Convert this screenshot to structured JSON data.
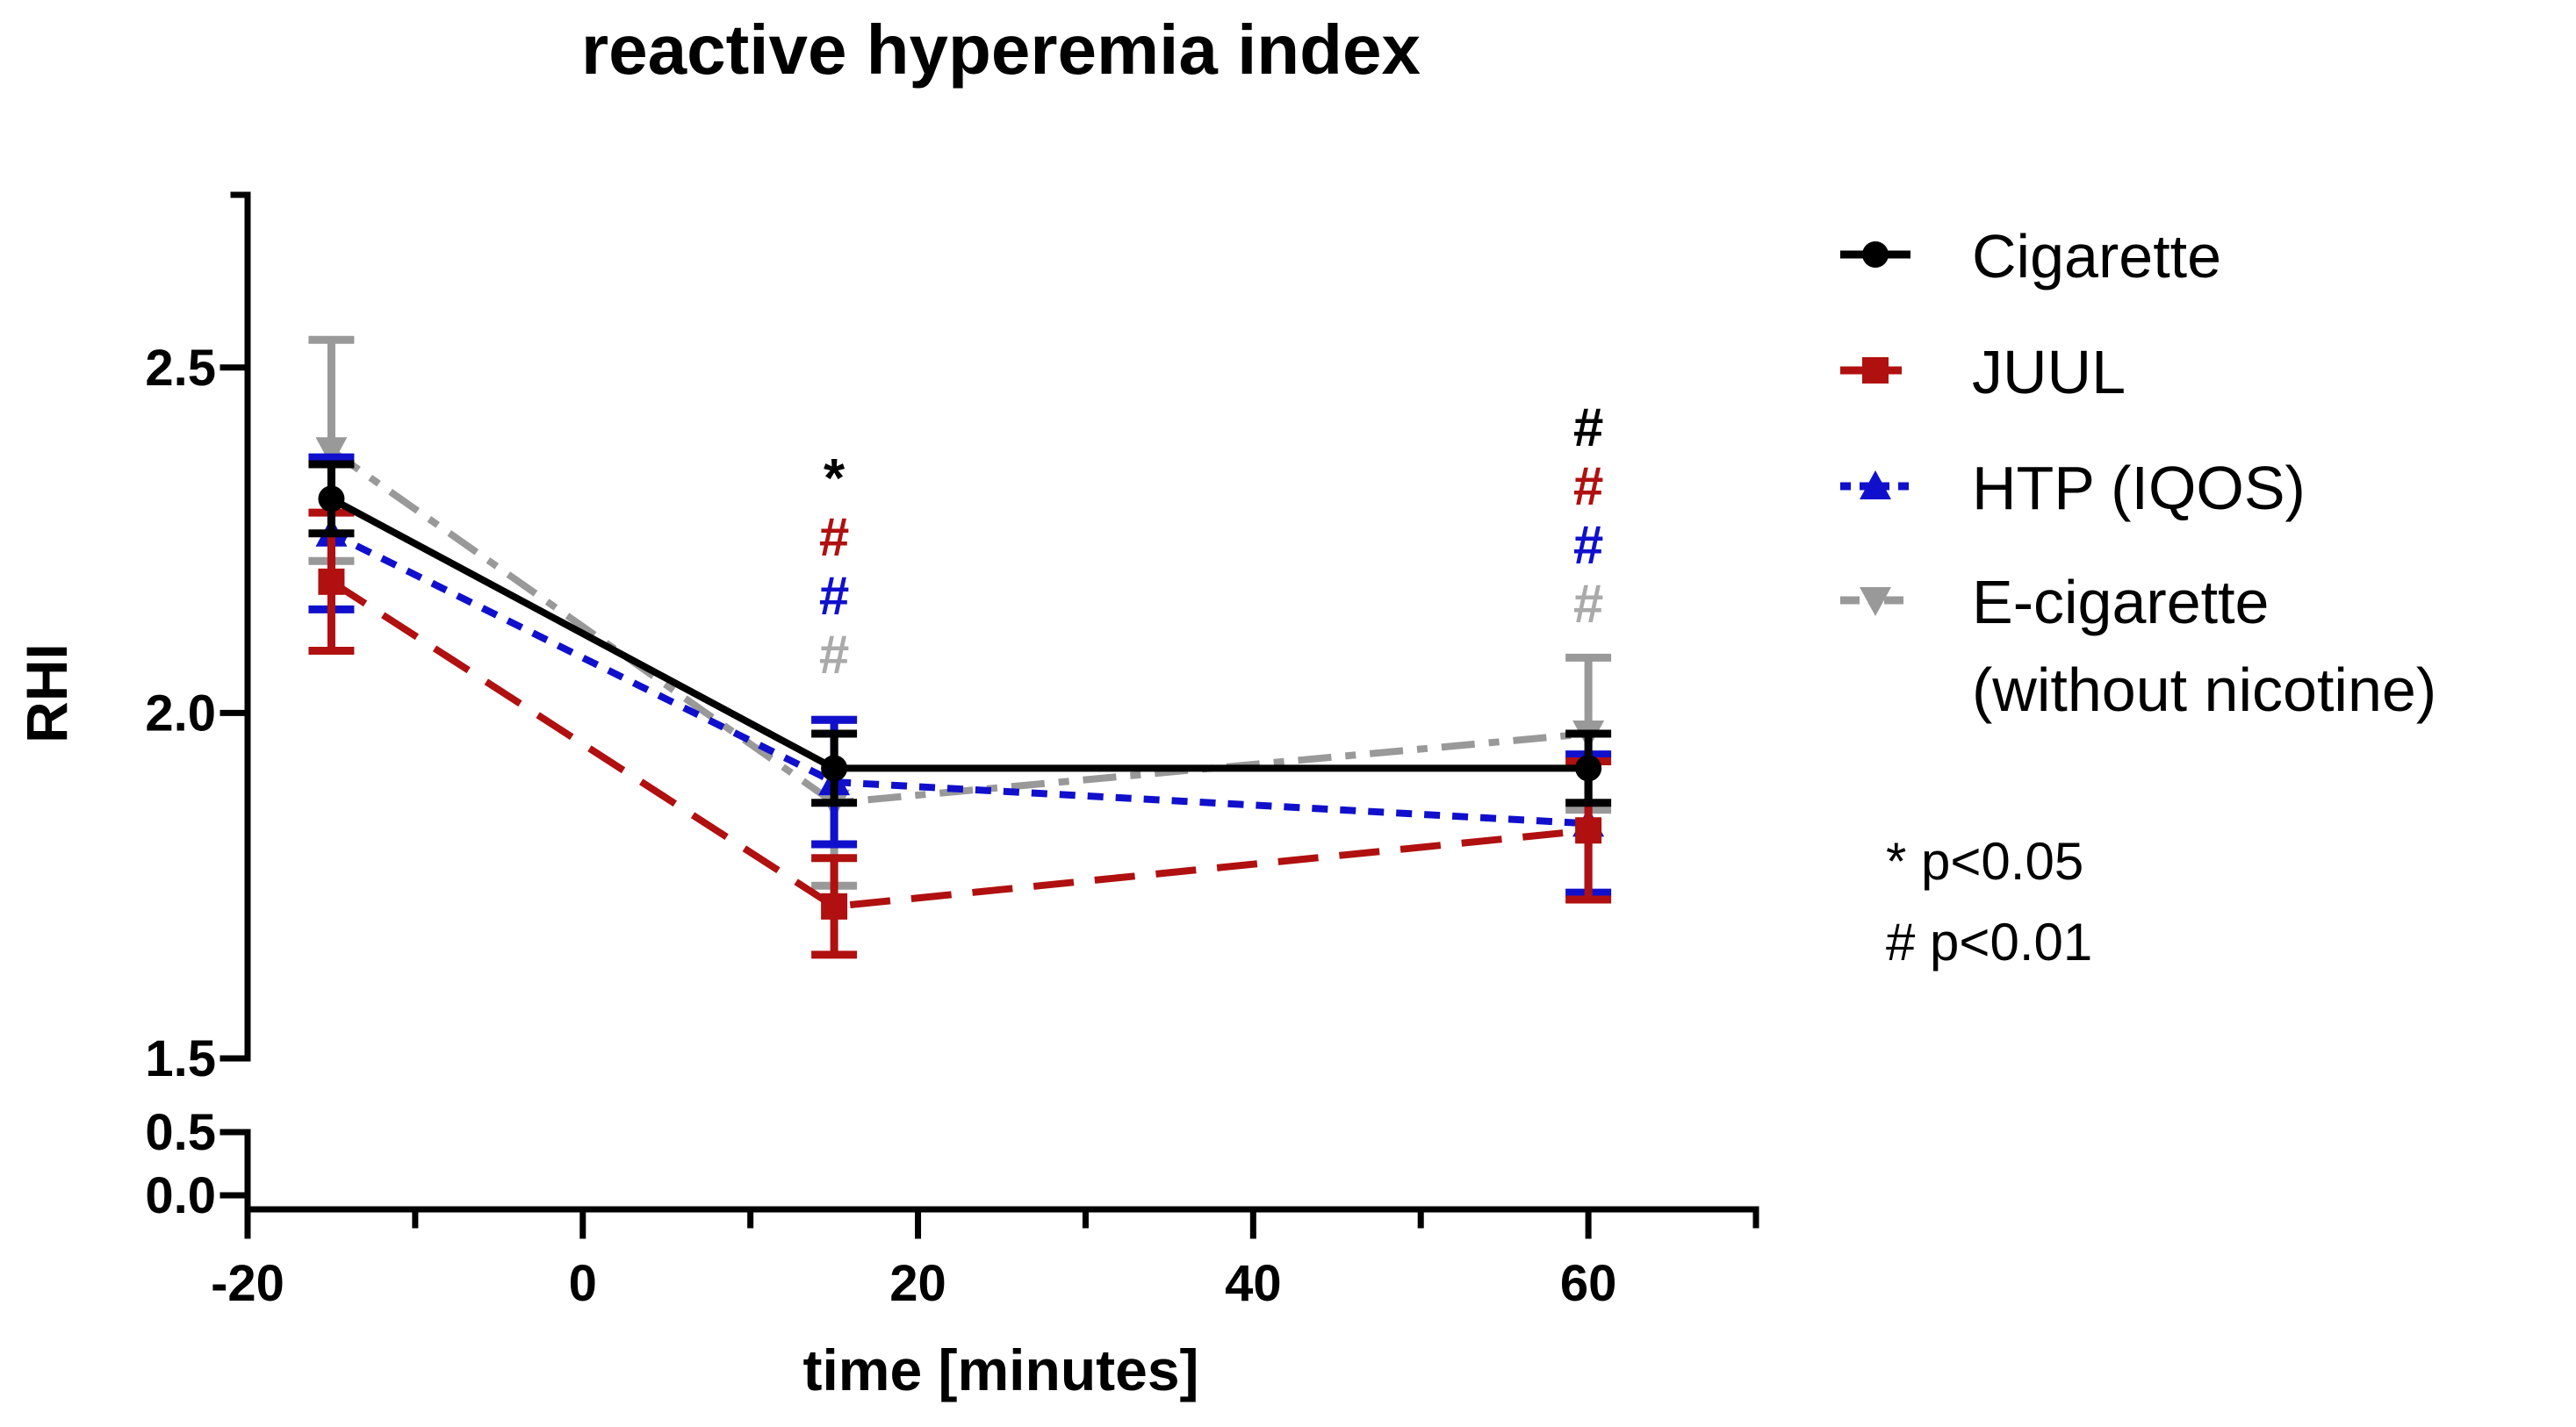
{
  "chart_data": {
    "type": "line",
    "title": "reactive hyperemia index",
    "xlabel": "time [minutes]",
    "ylabel": "RHI",
    "xlim": [
      -20,
      70
    ],
    "xticks": [
      -20,
      0,
      20,
      40,
      60
    ],
    "x_minor_ticks": [
      -10,
      10,
      30,
      50,
      70
    ],
    "ylim_upper": [
      1.5,
      2.75
    ],
    "ylim_lower": [
      0.0,
      0.5
    ],
    "yticks_upper": [
      1.5,
      2.0,
      2.5
    ],
    "yticks_lower": [
      0.0,
      0.5
    ],
    "y_tick_labels": [
      "0.0",
      "0.5",
      "1.5",
      "2.0",
      "2.5"
    ],
    "x": [
      -15,
      15,
      60
    ],
    "series": [
      {
        "name": "Cigarette",
        "color": "#000000",
        "dash": "solid",
        "marker": "circle",
        "values": [
          2.31,
          1.92,
          1.92
        ],
        "error": [
          0.05,
          0.05,
          0.05
        ]
      },
      {
        "name": "JUUL",
        "color": "#b01010",
        "dash": "long-dash",
        "marker": "square",
        "values": [
          2.19,
          1.72,
          1.83
        ],
        "error": [
          0.1,
          0.07,
          0.1
        ]
      },
      {
        "name": "HTP (IQOS)",
        "color": "#1010cc",
        "dash": "short-dash",
        "marker": "triangle-up",
        "values": [
          2.26,
          1.9,
          1.84
        ],
        "error": [
          0.11,
          0.09,
          0.1
        ]
      },
      {
        "name": "E-cigarette",
        "color": "#999999",
        "dash": "dash-dot",
        "marker": "triangle-down",
        "values": [
          2.38,
          1.87,
          1.97
        ],
        "error": [
          0.16,
          0.12,
          0.11
        ]
      }
    ],
    "legend": {
      "position": "right",
      "entries": [
        {
          "lines": [
            "Cigarette"
          ],
          "series": 0
        },
        {
          "lines": [
            "JUUL"
          ],
          "series": 1
        },
        {
          "lines": [
            "HTP (IQOS)"
          ],
          "series": 2
        },
        {
          "lines": [
            "E-cigarette",
            "(without nicotine)"
          ],
          "series": 3
        }
      ]
    },
    "annotations": [
      {
        "x": 15,
        "symbols": [
          {
            "text": "*",
            "color": "#000000"
          },
          {
            "text": "#",
            "color": "#b01010"
          },
          {
            "text": "#",
            "color": "#1010cc"
          },
          {
            "text": "#",
            "color": "#aaaaaa"
          }
        ]
      },
      {
        "x": 60,
        "symbols": [
          {
            "text": "#",
            "color": "#000000"
          },
          {
            "text": "#",
            "color": "#b01010"
          },
          {
            "text": "#",
            "color": "#1010cc"
          },
          {
            "text": "#",
            "color": "#aaaaaa"
          }
        ]
      }
    ],
    "significance_notes": [
      "* p<0.05",
      "# p<0.01"
    ]
  }
}
